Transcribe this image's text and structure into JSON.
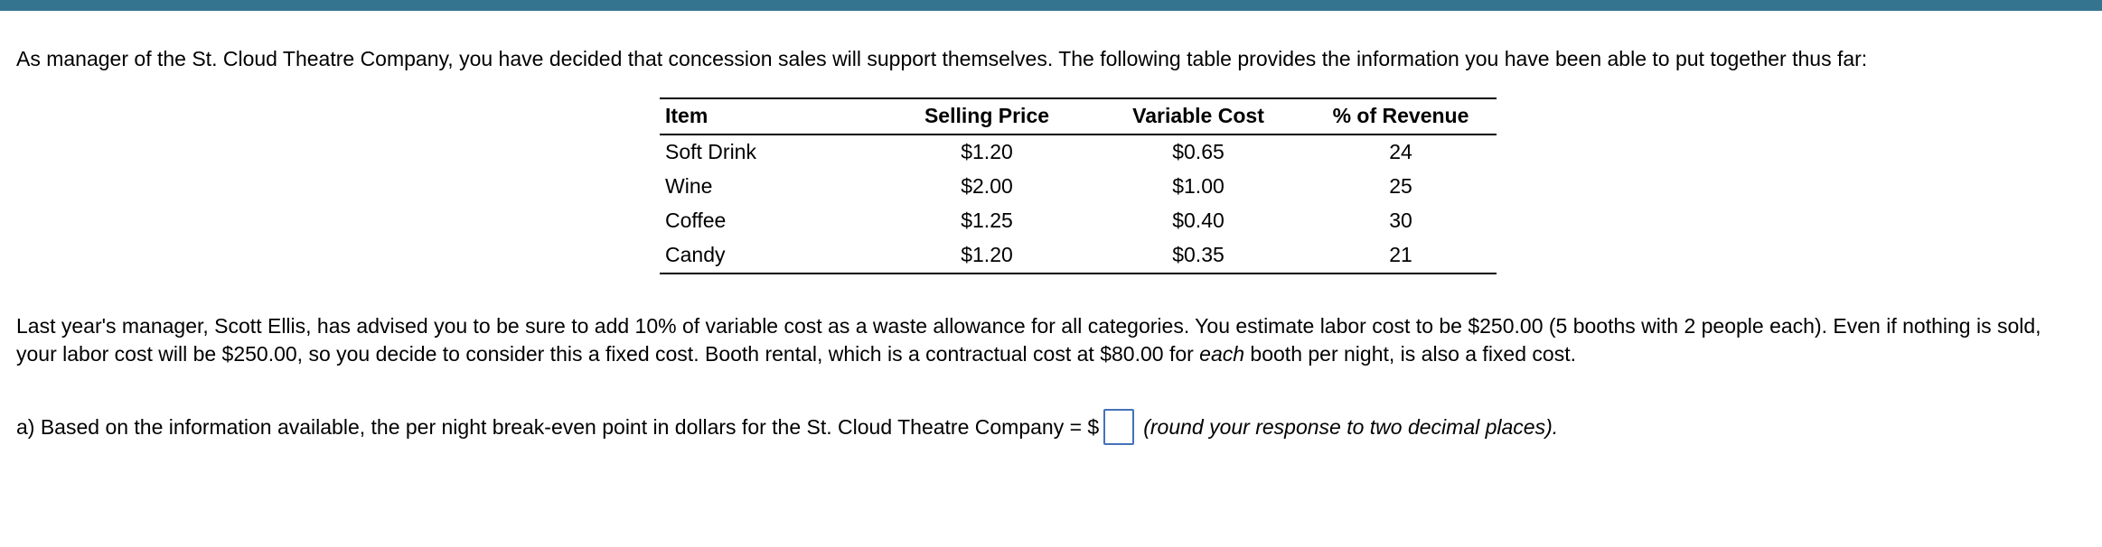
{
  "top_bar": {
    "color": "#35748F"
  },
  "intro": {
    "text": "As manager of the St. Cloud Theatre Company, you have decided that concession sales will support themselves. The following table provides the information you have been able to put together thus far:"
  },
  "table": {
    "headers": [
      "Item",
      "Selling Price",
      "Variable Cost",
      "% of Revenue"
    ],
    "rows": [
      [
        "Soft Drink",
        "$1.20",
        "$0.65",
        "24"
      ],
      [
        "Wine",
        "$2.00",
        "$1.00",
        "25"
      ],
      [
        "Coffee",
        "$1.25",
        "$0.40",
        "30"
      ],
      [
        "Candy",
        "$1.20",
        "$0.35",
        "21"
      ]
    ]
  },
  "scenario": {
    "part1": "Last year's manager, Scott Ellis, has advised you to be sure to add 10% of variable cost as a waste allowance for all categories. You estimate labor cost to be $250.00 (5 booths with 2 people each). Even if nothing is sold, your labor cost will be $250.00, so you decide to consider this a fixed cost. Booth rental, which is a contractual cost at $80.00 for ",
    "italic_word": "each",
    "part2": " booth per night, is also a fixed cost."
  },
  "question": {
    "prefix": "a) Based on the information available, the per night break-even point in dollars for the St. Cloud Theatre Company = $",
    "answer_value": "",
    "hint": "(round your response to two decimal places)."
  }
}
